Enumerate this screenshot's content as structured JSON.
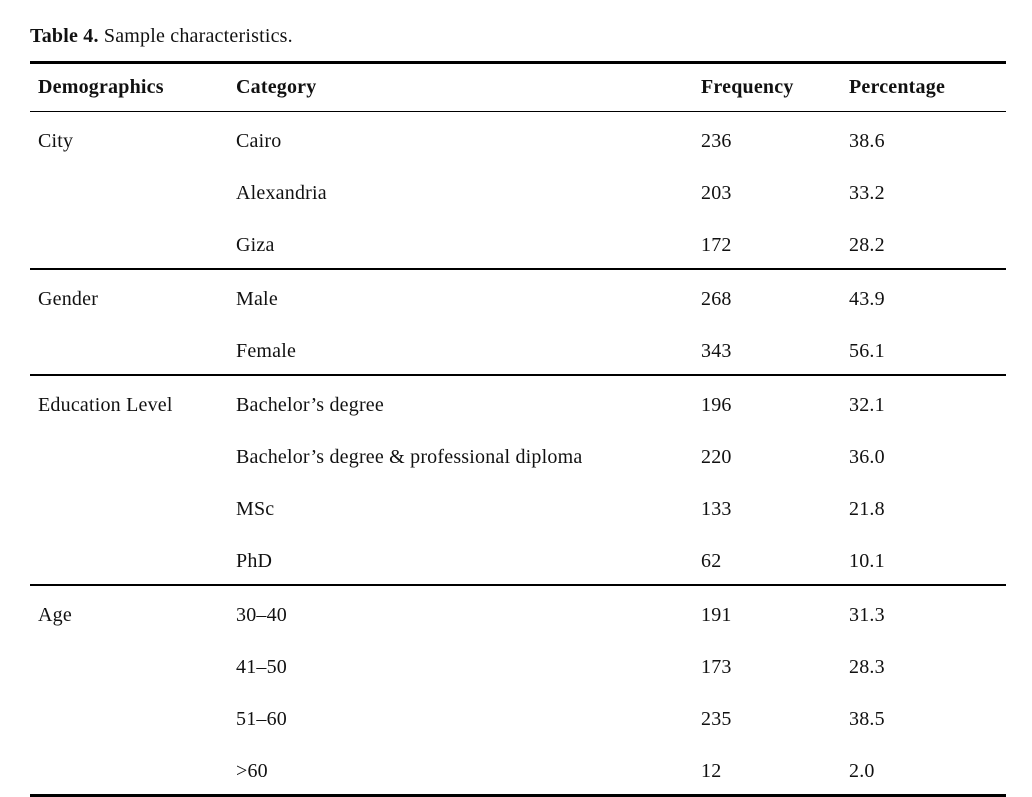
{
  "page": {
    "background": "#ffffff",
    "text_color": "#111111",
    "rule_color": "#000000"
  },
  "title": {
    "label": "Table 4.",
    "caption": "Sample characteristics."
  },
  "table": {
    "headers": [
      "Demographics",
      "Category",
      "Frequency",
      "Percentage"
    ],
    "groups": [
      {
        "demographic": "City",
        "rows": [
          {
            "category": "Cairo",
            "frequency": "236",
            "percentage": "38.6"
          },
          {
            "category": "Alexandria",
            "frequency": "203",
            "percentage": "33.2"
          },
          {
            "category": "Giza",
            "frequency": "172",
            "percentage": "28.2"
          }
        ]
      },
      {
        "demographic": "Gender",
        "rows": [
          {
            "category": "Male",
            "frequency": "268",
            "percentage": "43.9"
          },
          {
            "category": "Female",
            "frequency": "343",
            "percentage": "56.1"
          }
        ]
      },
      {
        "demographic": "Education Level",
        "rows": [
          {
            "category": "Bachelor’s degree",
            "frequency": "196",
            "percentage": "32.1"
          },
          {
            "category": "Bachelor’s degree & professional diploma",
            "frequency": "220",
            "percentage": "36.0"
          },
          {
            "category": "MSc",
            "frequency": "133",
            "percentage": "21.8"
          },
          {
            "category": "PhD",
            "frequency": "62",
            "percentage": "10.1"
          }
        ]
      },
      {
        "demographic": "Age",
        "rows": [
          {
            "category": "30–40",
            "frequency": "191",
            "percentage": "31.3"
          },
          {
            "category": "41–50",
            "frequency": "173",
            "percentage": "28.3"
          },
          {
            "category": "51–60",
            "frequency": "235",
            "percentage": "38.5"
          },
          {
            "category": ">60",
            "frequency": "12",
            "percentage": "2.0"
          }
        ]
      }
    ]
  }
}
